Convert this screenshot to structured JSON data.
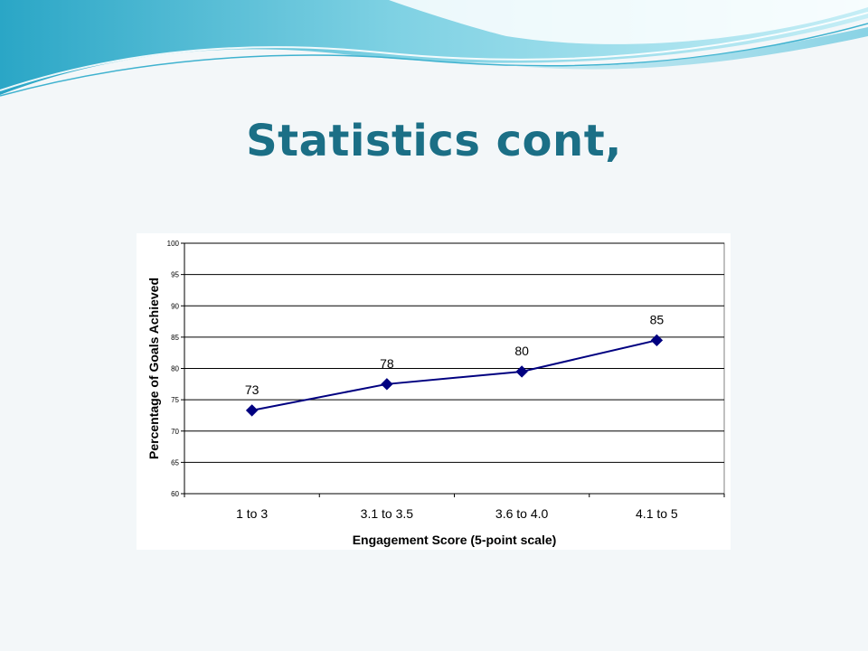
{
  "slide": {
    "title": "Statistics cont,"
  },
  "colors": {
    "title": "#1b6f86",
    "series": "#000080",
    "banner_light": "#bfe9f2",
    "banner_dark": "#2aa6c6"
  },
  "chart_data": {
    "type": "line",
    "categories": [
      "1 to 3",
      "3.1 to 3.5",
      "3.6 to 4.0",
      "4.1 to 5"
    ],
    "values": [
      73.3,
      77.5,
      79.5,
      84.5
    ],
    "data_labels": [
      "73",
      "78",
      "80",
      "85"
    ],
    "xlabel": "Engagement Score (5-point scale)",
    "ylabel": "Percentage of Goals Achieved",
    "ylim": [
      60,
      100
    ],
    "yticks": [
      60,
      65,
      70,
      75,
      80,
      85,
      90,
      95,
      100
    ],
    "grid": true,
    "marker": "diamond",
    "legend": "none"
  }
}
